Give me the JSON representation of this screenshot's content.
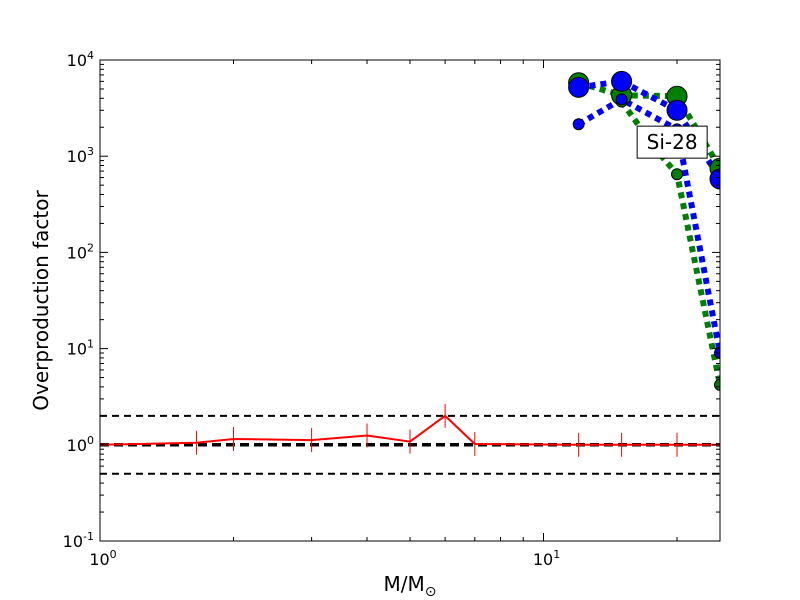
{
  "chart_data": {
    "type": "line",
    "xscale": "log",
    "yscale": "log",
    "xlim": [
      1,
      25
    ],
    "ylim": [
      0.1,
      10000
    ],
    "xlabel": "M/M",
    "xlabel_sub": "⊙",
    "ylabel": "Overproduction factor",
    "grid": false,
    "x_ticks": [
      {
        "value": 1,
        "base": "10",
        "exp": "0"
      },
      {
        "value": 10,
        "base": "10",
        "exp": "1"
      }
    ],
    "y_ticks": [
      {
        "value": 0.1,
        "base": "10",
        "exp": "-1"
      },
      {
        "value": 1,
        "base": "10",
        "exp": "0"
      },
      {
        "value": 10,
        "base": "10",
        "exp": "1"
      },
      {
        "value": 100,
        "base": "10",
        "exp": "2"
      },
      {
        "value": 1000,
        "base": "10",
        "exp": "3"
      },
      {
        "value": 10000,
        "base": "10",
        "exp": "4"
      }
    ],
    "hlines": [
      {
        "y": 2,
        "color": "#000000",
        "style": "dashed",
        "width": 2
      },
      {
        "y": 1,
        "color": "#000000",
        "style": "dashed",
        "width": 3.5
      },
      {
        "y": 0.5,
        "color": "#000000",
        "style": "dashed",
        "width": 2
      }
    ],
    "annotation": {
      "text": "Si-28",
      "x": 19.5,
      "y": 1400
    },
    "series": [
      {
        "color": "#ff0000",
        "style": "solid",
        "marker": "errorbar",
        "points": [
          {
            "x": 1,
            "y": 1.0
          },
          {
            "x": 1.65,
            "y": 1.05
          },
          {
            "x": 2,
            "y": 1.15
          },
          {
            "x": 3,
            "y": 1.12
          },
          {
            "x": 4,
            "y": 1.25
          },
          {
            "x": 5,
            "y": 1.08
          },
          {
            "x": 6,
            "y": 2.0
          },
          {
            "x": 7,
            "y": 1.02
          },
          {
            "x": 12,
            "y": 1.0
          },
          {
            "x": 15,
            "y": 1.0
          },
          {
            "x": 20,
            "y": 1.0
          },
          {
            "x": 25,
            "y": 1.0
          }
        ]
      },
      {
        "color": "#008000",
        "style": "dotted",
        "marker": "circle",
        "points": [
          {
            "x": 12,
            "y": 5800,
            "size": "large"
          },
          {
            "x": 15,
            "y": 4300,
            "size": "large"
          },
          {
            "x": 20,
            "y": 4200,
            "size": "large"
          },
          {
            "x": 25,
            "y": 750,
            "size": "large"
          },
          {
            "x": 15,
            "y": 3700,
            "size": "small"
          },
          {
            "x": 18,
            "y": 1150,
            "size": "small"
          },
          {
            "x": 20,
            "y": 650,
            "size": "small"
          },
          {
            "x": 25,
            "y": 4.2,
            "size": "small"
          }
        ]
      },
      {
        "color": "#0000ff",
        "style": "dotted",
        "marker": "circle",
        "points": [
          {
            "x": 12,
            "y": 5200,
            "size": "large"
          },
          {
            "x": 15,
            "y": 6000,
            "size": "large"
          },
          {
            "x": 20,
            "y": 3000,
            "size": "large"
          },
          {
            "x": 25,
            "y": 580,
            "size": "large"
          },
          {
            "x": 12,
            "y": 2150,
            "size": "small"
          },
          {
            "x": 15,
            "y": 3900,
            "size": "small"
          },
          {
            "x": 20,
            "y": 1900,
            "size": "small"
          },
          {
            "x": 25,
            "y": 9,
            "size": "small"
          }
        ]
      }
    ]
  }
}
